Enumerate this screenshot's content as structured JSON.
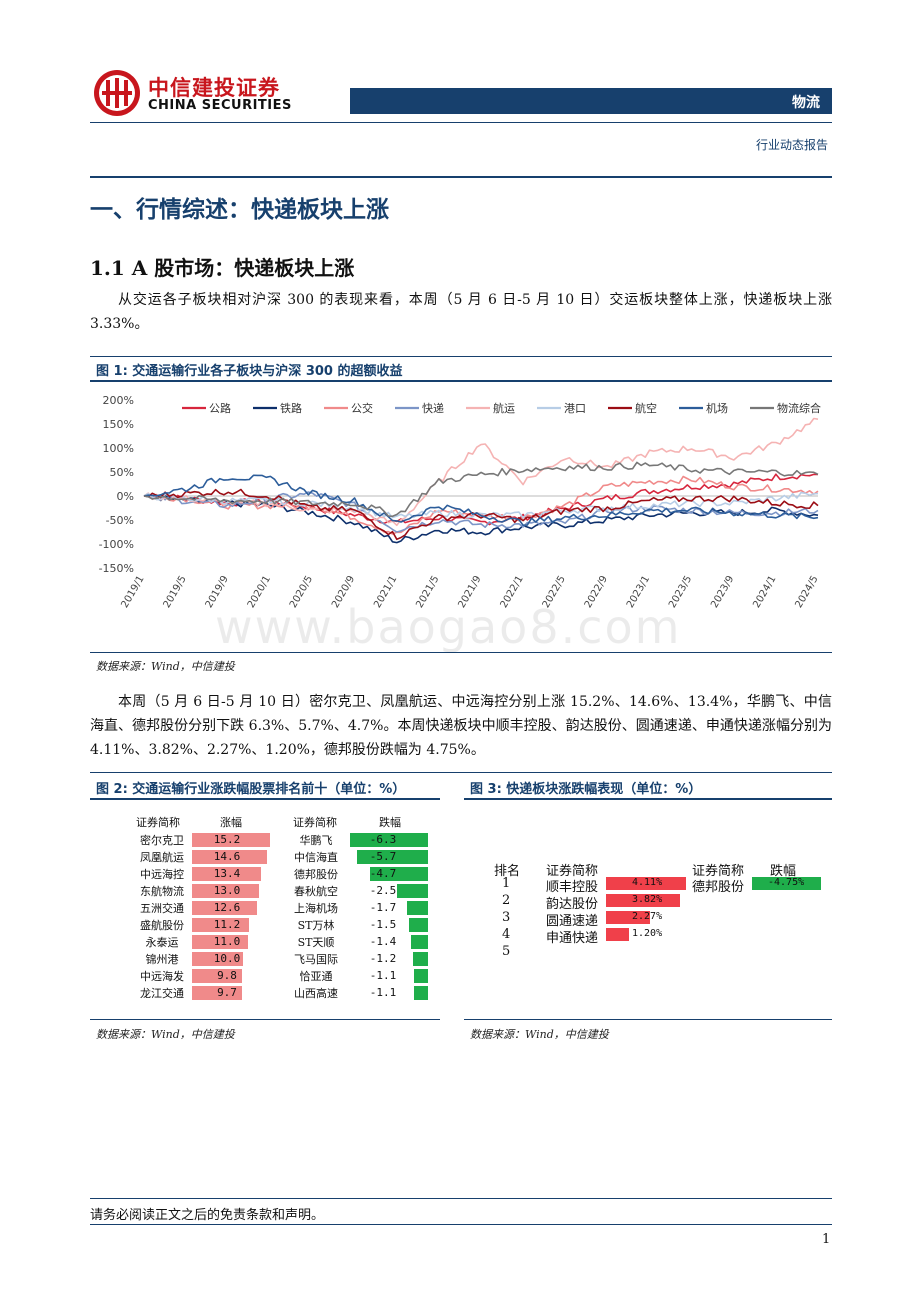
{
  "header": {
    "brand_cn": "中信建投证券",
    "brand_en": "CHINA SECURITIES",
    "sector": "物流",
    "report_type": "行业动态报告"
  },
  "section": {
    "h1": "一、行情综述：快递板块上涨",
    "h2": "1.1 A 股市场：快递板块上涨",
    "para1": "从交运各子板块相对沪深 300 的表现来看，本周（5 月 6 日-5 月 10 日）交运板块整体上涨，快递板块上涨3.33%。",
    "para2": "本周（5 月 6 日-5 月 10 日）密尔克卫、凤凰航运、中远海控分别上涨 15.2%、14.6%、13.4%，华鹏飞、中信海直、德邦股份分别下跌 6.3%、5.7%、4.7%。本周快递板块中顺丰控股、韵达股份、圆通速递、申通快递涨幅分别为 4.11%、3.82%、2.27%、1.20%，德邦股份跌幅为 4.75%。"
  },
  "fig1": {
    "title": "图 1:  交通运输行业各子板块与沪深 300 的超额收益",
    "source": "数据来源：Wind，中信建投"
  },
  "fig2": {
    "title": "图 2:  交通运输行业涨跌幅股票排名前十（单位：%）",
    "source": "数据来源：Wind，中信建投",
    "head_name_up": "证券简称",
    "head_up": "涨幅",
    "head_name_down": "证券简称",
    "head_down": "跌幅",
    "rows": [
      {
        "up_name": "密尔克卫",
        "up": "15.2",
        "up_val": 15.2,
        "down_name": "华鹏飞",
        "down": "-6.3",
        "down_val": -6.3
      },
      {
        "up_name": "凤凰航运",
        "up": "14.6",
        "up_val": 14.6,
        "down_name": "中信海直",
        "down": "-5.7",
        "down_val": -5.7
      },
      {
        "up_name": "中远海控",
        "up": "13.4",
        "up_val": 13.4,
        "down_name": "德邦股份",
        "down": "-4.7",
        "down_val": -4.7
      },
      {
        "up_name": "东航物流",
        "up": "13.0",
        "up_val": 13.0,
        "down_name": "春秋航空",
        "down": "-2.5",
        "down_val": -2.5
      },
      {
        "up_name": "五洲交通",
        "up": "12.6",
        "up_val": 12.6,
        "down_name": "上海机场",
        "down": "-1.7",
        "down_val": -1.7
      },
      {
        "up_name": "盛航股份",
        "up": "11.2",
        "up_val": 11.2,
        "down_name": "ST万林",
        "down": "-1.5",
        "down_val": -1.5
      },
      {
        "up_name": "永泰运",
        "up": "11.0",
        "up_val": 11.0,
        "down_name": "ST天顺",
        "down": "-1.4",
        "down_val": -1.4
      },
      {
        "up_name": "锦州港",
        "up": "10.0",
        "up_val": 10.0,
        "down_name": "飞马国际",
        "down": "-1.2",
        "down_val": -1.2
      },
      {
        "up_name": "中远海发",
        "up": "9.8",
        "up_val": 9.8,
        "down_name": "恰亚通",
        "down": "-1.1",
        "down_val": -1.1
      },
      {
        "up_name": "龙江交通",
        "up": "9.7",
        "up_val": 9.7,
        "down_name": "山西高速",
        "down": "-1.1",
        "down_val": -1.1
      }
    ]
  },
  "fig3": {
    "title": "图 3:  快递板块涨跌幅表现（单位：%）",
    "source": "数据来源：Wind，中信建投",
    "head_rank": "排名",
    "head_name": "证券简称",
    "head_name2": "证券简称",
    "head_down": "跌幅",
    "rows": [
      {
        "rank": "1",
        "name": "顺丰控股",
        "pct": "4.11%",
        "val": 4.11
      },
      {
        "rank": "2",
        "name": "韵达股份",
        "pct": "3.82%",
        "val": 3.82
      },
      {
        "rank": "3",
        "name": "圆通速递",
        "pct": "2.27%",
        "val": 2.27
      },
      {
        "rank": "4",
        "name": "申通快递",
        "pct": "1.20%",
        "val": 1.2
      },
      {
        "rank": "5",
        "name": "",
        "pct": "",
        "val": 0
      }
    ],
    "down_name": "德邦股份",
    "down_pct": "-4.75%",
    "down_val": -4.75
  },
  "chart_data": {
    "type": "line",
    "ylim": [
      -150,
      200
    ],
    "yticks": [
      "200%",
      "150%",
      "100%",
      "50%",
      "0%",
      "-50%",
      "-100%",
      "-150%"
    ],
    "xticks": [
      "2019/1",
      "2019/5",
      "2019/9",
      "2020/1",
      "2020/5",
      "2020/9",
      "2021/1",
      "2021/5",
      "2021/9",
      "2022/1",
      "2022/5",
      "2022/9",
      "2023/1",
      "2023/5",
      "2023/9",
      "2024/1",
      "2024/5"
    ],
    "legend_position": "top",
    "series": [
      {
        "name": "公路",
        "color": "#d7263d",
        "x": [
          "2019/1",
          "2019/5",
          "2019/9",
          "2020/1",
          "2020/5",
          "2020/9",
          "2021/1",
          "2021/5",
          "2021/9",
          "2022/1",
          "2022/5",
          "2022/9",
          "2023/1",
          "2023/5",
          "2023/9",
          "2024/1",
          "2024/5"
        ],
        "y": [
          0,
          -5,
          -15,
          -10,
          -25,
          -40,
          -55,
          -45,
          -55,
          -45,
          -25,
          -5,
          10,
          20,
          25,
          40,
          45
        ]
      },
      {
        "name": "铁路",
        "color": "#0d2f6b",
        "x": [
          "2019/1",
          "2019/5",
          "2019/9",
          "2020/1",
          "2020/5",
          "2020/9",
          "2021/1",
          "2021/5",
          "2021/9",
          "2022/1",
          "2022/5",
          "2022/9",
          "2023/1",
          "2023/5",
          "2023/9",
          "2024/1",
          "2024/5"
        ],
        "y": [
          0,
          -10,
          -15,
          -20,
          -35,
          -55,
          -95,
          -70,
          -75,
          -65,
          -60,
          -50,
          -40,
          -35,
          -35,
          -30,
          -40
        ]
      },
      {
        "name": "公交",
        "color": "#f08a8a",
        "x": [
          "2019/1",
          "2019/5",
          "2019/9",
          "2020/1",
          "2020/5",
          "2020/9",
          "2021/1",
          "2021/5",
          "2021/9",
          "2022/1",
          "2022/5",
          "2022/9",
          "2023/1",
          "2023/5",
          "2023/9",
          "2024/1",
          "2024/5"
        ],
        "y": [
          0,
          -5,
          -20,
          -20,
          -20,
          -45,
          -80,
          -30,
          -40,
          -45,
          -20,
          20,
          30,
          35,
          20,
          15,
          10
        ]
      },
      {
        "name": "快递",
        "color": "#7c95c7",
        "x": [
          "2019/1",
          "2019/5",
          "2019/9",
          "2020/1",
          "2020/5",
          "2020/9",
          "2021/1",
          "2021/5",
          "2021/9",
          "2022/1",
          "2022/5",
          "2022/9",
          "2023/1",
          "2023/5",
          "2023/9",
          "2024/1",
          "2024/5"
        ],
        "y": [
          0,
          -10,
          -20,
          -5,
          5,
          -20,
          -70,
          -50,
          -60,
          -60,
          -55,
          -30,
          -25,
          -30,
          -35,
          -35,
          -30
        ]
      },
      {
        "name": "航运",
        "color": "#f5b3b3",
        "x": [
          "2019/1",
          "2019/5",
          "2019/9",
          "2020/1",
          "2020/5",
          "2020/9",
          "2021/1",
          "2021/5",
          "2021/9",
          "2022/1",
          "2022/5",
          "2022/9",
          "2023/1",
          "2023/5",
          "2023/9",
          "2024/1",
          "2024/5"
        ],
        "y": [
          0,
          -5,
          -15,
          -15,
          -30,
          -30,
          -60,
          30,
          110,
          30,
          80,
          60,
          90,
          100,
          80,
          110,
          160
        ]
      },
      {
        "name": "港口",
        "color": "#b7cde6",
        "x": [
          "2019/1",
          "2019/5",
          "2019/9",
          "2020/1",
          "2020/5",
          "2020/9",
          "2021/1",
          "2021/5",
          "2021/9",
          "2022/1",
          "2022/5",
          "2022/9",
          "2023/1",
          "2023/5",
          "2023/9",
          "2024/1",
          "2024/5"
        ],
        "y": [
          0,
          -5,
          -10,
          -10,
          -15,
          -25,
          -45,
          -35,
          -40,
          -40,
          -30,
          -25,
          -20,
          -15,
          -15,
          -5,
          5
        ]
      },
      {
        "name": "航空",
        "color": "#9b0d14",
        "x": [
          "2019/1",
          "2019/5",
          "2019/9",
          "2020/1",
          "2020/5",
          "2020/9",
          "2021/1",
          "2021/5",
          "2021/9",
          "2022/1",
          "2022/5",
          "2022/9",
          "2023/1",
          "2023/5",
          "2023/9",
          "2024/1",
          "2024/5"
        ],
        "y": [
          0,
          5,
          10,
          0,
          -25,
          -30,
          -85,
          -45,
          -40,
          -50,
          -30,
          -25,
          -10,
          -5,
          -5,
          -15,
          -20
        ]
      },
      {
        "name": "机场",
        "color": "#2c5d9a",
        "x": [
          "2019/1",
          "2019/5",
          "2019/9",
          "2020/1",
          "2020/5",
          "2020/9",
          "2021/1",
          "2021/5",
          "2021/9",
          "2022/1",
          "2022/5",
          "2022/9",
          "2023/1",
          "2023/5",
          "2023/9",
          "2024/1",
          "2024/5"
        ],
        "y": [
          0,
          15,
          40,
          35,
          5,
          -10,
          -55,
          -20,
          -40,
          -55,
          -45,
          -40,
          -30,
          -30,
          -35,
          -40,
          -45
        ]
      },
      {
        "name": "物流综合",
        "color": "#777777",
        "x": [
          "2019/1",
          "2019/5",
          "2019/9",
          "2020/1",
          "2020/5",
          "2020/9",
          "2021/1",
          "2021/5",
          "2021/9",
          "2022/1",
          "2022/5",
          "2022/9",
          "2023/1",
          "2023/5",
          "2023/9",
          "2024/1",
          "2024/5"
        ],
        "y": [
          0,
          -5,
          -10,
          -10,
          -15,
          -15,
          -40,
          30,
          45,
          55,
          60,
          60,
          65,
          55,
          50,
          50,
          45
        ]
      }
    ]
  }
}
